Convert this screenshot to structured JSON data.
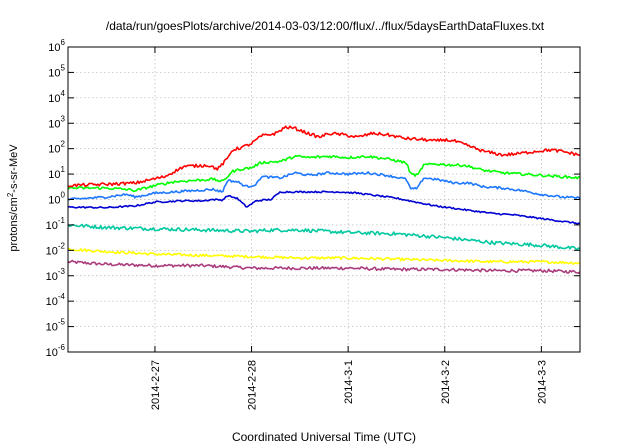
{
  "chart_data": {
    "type": "line",
    "title": "/data/run/goesPlots/archive/2014-03-03/12:00/flux/../flux/5daysEarthDataFluxes.txt",
    "xlabel": "Coordinated Universal Time (UTC)",
    "ylabel_prefix": "protons/cm",
    "ylabel_sup": "2",
    "ylabel_suffix": "-s-sr-MeV",
    "y_scale": "log",
    "ylim": [
      1e-06,
      1000000.0
    ],
    "xlim": [
      -0.9,
      4.4
    ],
    "x_unit": "days since 2014-2-27 00:00 UTC",
    "grid": true,
    "y_ticks": [
      {
        "base": "10",
        "exp": "-6",
        "value": -6
      },
      {
        "base": "10",
        "exp": "-5",
        "value": -5
      },
      {
        "base": "10",
        "exp": "-4",
        "value": -4
      },
      {
        "base": "10",
        "exp": "-3",
        "value": -3
      },
      {
        "base": "10",
        "exp": "-2",
        "value": -2
      },
      {
        "base": "10",
        "exp": "-1",
        "value": -1
      },
      {
        "base": "10",
        "exp": "0",
        "value": 0
      },
      {
        "base": "10",
        "exp": "1",
        "value": 1
      },
      {
        "base": "10",
        "exp": "2",
        "value": 2
      },
      {
        "base": "10",
        "exp": "3",
        "value": 3
      },
      {
        "base": "10",
        "exp": "4",
        "value": 4
      },
      {
        "base": "10",
        "exp": "5",
        "value": 5
      },
      {
        "base": "10",
        "exp": "6",
        "value": 6
      }
    ],
    "x_ticks": [
      {
        "label": "2014-2-27",
        "x": 0
      },
      {
        "label": "2014-2-28",
        "x": 1
      },
      {
        "label": "2014-3-1",
        "x": 2
      },
      {
        "label": "2014-3-2",
        "x": 3
      },
      {
        "label": "2014-3-3",
        "x": 4
      }
    ],
    "series": [
      {
        "color": "#ff0000",
        "noise": 0.06,
        "points": [
          [
            -0.9,
            0.55
          ],
          [
            -0.5,
            0.6
          ],
          [
            -0.2,
            0.65
          ],
          [
            0.1,
            0.9
          ],
          [
            0.3,
            1.3
          ],
          [
            0.55,
            1.35
          ],
          [
            0.65,
            1.2
          ],
          [
            0.75,
            1.6
          ],
          [
            0.8,
            1.95
          ],
          [
            0.9,
            2.05
          ],
          [
            1.0,
            2.2
          ],
          [
            1.1,
            2.5
          ],
          [
            1.25,
            2.6
          ],
          [
            1.35,
            2.85
          ],
          [
            1.45,
            2.8
          ],
          [
            1.55,
            2.65
          ],
          [
            1.7,
            2.45
          ],
          [
            1.8,
            2.6
          ],
          [
            1.95,
            2.55
          ],
          [
            2.1,
            2.45
          ],
          [
            2.25,
            2.6
          ],
          [
            2.4,
            2.55
          ],
          [
            2.6,
            2.4
          ],
          [
            2.8,
            2.35
          ],
          [
            2.9,
            2.3
          ],
          [
            3.0,
            2.35
          ],
          [
            3.1,
            2.3
          ],
          [
            3.25,
            2.1
          ],
          [
            3.4,
            1.9
          ],
          [
            3.6,
            1.75
          ],
          [
            3.75,
            1.8
          ],
          [
            3.95,
            1.9
          ],
          [
            4.1,
            1.95
          ],
          [
            4.2,
            1.9
          ],
          [
            4.4,
            1.75
          ]
        ]
      },
      {
        "color": "#00ff00",
        "noise": 0.05,
        "points": [
          [
            -0.9,
            0.45
          ],
          [
            -0.5,
            0.45
          ],
          [
            -0.3,
            0.4
          ],
          [
            -0.2,
            0.35
          ],
          [
            0.0,
            0.55
          ],
          [
            0.2,
            0.7
          ],
          [
            0.4,
            0.75
          ],
          [
            0.6,
            0.8
          ],
          [
            0.7,
            0.7
          ],
          [
            0.8,
            1.1
          ],
          [
            0.9,
            1.2
          ],
          [
            1.0,
            1.25
          ],
          [
            1.1,
            1.45
          ],
          [
            1.3,
            1.5
          ],
          [
            1.45,
            1.7
          ],
          [
            1.6,
            1.65
          ],
          [
            1.8,
            1.7
          ],
          [
            2.0,
            1.65
          ],
          [
            2.2,
            1.7
          ],
          [
            2.4,
            1.6
          ],
          [
            2.6,
            1.45
          ],
          [
            2.65,
            1.0
          ],
          [
            2.72,
            0.95
          ],
          [
            2.78,
            1.35
          ],
          [
            2.9,
            1.4
          ],
          [
            3.1,
            1.35
          ],
          [
            3.2,
            1.35
          ],
          [
            3.4,
            1.15
          ],
          [
            3.6,
            1.05
          ],
          [
            3.8,
            1.0
          ],
          [
            4.0,
            0.95
          ],
          [
            4.2,
            0.9
          ],
          [
            4.4,
            0.85
          ]
        ]
      },
      {
        "color": "#1e78ff",
        "noise": 0.045,
        "points": [
          [
            -0.9,
            0.0
          ],
          [
            -0.5,
            0.1
          ],
          [
            -0.3,
            0.2
          ],
          [
            -0.2,
            0.1
          ],
          [
            0.0,
            0.25
          ],
          [
            0.2,
            0.3
          ],
          [
            0.4,
            0.35
          ],
          [
            0.6,
            0.4
          ],
          [
            0.7,
            0.3
          ],
          [
            0.75,
            0.75
          ],
          [
            0.85,
            0.7
          ],
          [
            0.95,
            0.5
          ],
          [
            1.05,
            0.6
          ],
          [
            1.1,
            0.9
          ],
          [
            1.3,
            0.85
          ],
          [
            1.45,
            1.05
          ],
          [
            1.6,
            0.95
          ],
          [
            1.8,
            1.05
          ],
          [
            2.0,
            1.0
          ],
          [
            2.2,
            1.05
          ],
          [
            2.4,
            0.95
          ],
          [
            2.6,
            0.8
          ],
          [
            2.65,
            0.4
          ],
          [
            2.72,
            0.45
          ],
          [
            2.78,
            0.85
          ],
          [
            2.9,
            0.8
          ],
          [
            3.1,
            0.65
          ],
          [
            3.25,
            0.65
          ],
          [
            3.4,
            0.5
          ],
          [
            3.6,
            0.45
          ],
          [
            3.8,
            0.35
          ],
          [
            4.0,
            0.2
          ],
          [
            4.2,
            0.1
          ],
          [
            4.4,
            0.05
          ]
        ]
      },
      {
        "color": "#0000d2",
        "noise": 0.03,
        "points": [
          [
            -0.9,
            -0.3
          ],
          [
            -0.5,
            -0.32
          ],
          [
            -0.2,
            -0.25
          ],
          [
            0.0,
            -0.1
          ],
          [
            0.3,
            -0.05
          ],
          [
            0.5,
            -0.05
          ],
          [
            0.6,
            0.0
          ],
          [
            0.7,
            -0.02
          ],
          [
            0.75,
            0.15
          ],
          [
            0.85,
            0.05
          ],
          [
            0.95,
            -0.3
          ],
          [
            1.05,
            -0.05
          ],
          [
            1.2,
            0.0
          ],
          [
            1.3,
            0.3
          ],
          [
            1.5,
            0.3
          ],
          [
            1.7,
            0.3
          ],
          [
            1.9,
            0.3
          ],
          [
            2.1,
            0.25
          ],
          [
            2.3,
            0.15
          ],
          [
            2.5,
            0.05
          ],
          [
            2.7,
            -0.1
          ],
          [
            2.9,
            -0.25
          ],
          [
            3.1,
            -0.35
          ],
          [
            3.3,
            -0.45
          ],
          [
            3.5,
            -0.55
          ],
          [
            3.7,
            -0.6
          ],
          [
            3.9,
            -0.7
          ],
          [
            4.1,
            -0.8
          ],
          [
            4.3,
            -0.9
          ],
          [
            4.4,
            -0.95
          ]
        ]
      },
      {
        "color": "#00c8a0",
        "noise": 0.07,
        "points": [
          [
            -0.9,
            -1.0
          ],
          [
            -0.5,
            -1.1
          ],
          [
            0.0,
            -1.15
          ],
          [
            0.5,
            -1.2
          ],
          [
            1.0,
            -1.25
          ],
          [
            1.2,
            -1.2
          ],
          [
            1.5,
            -1.2
          ],
          [
            2.0,
            -1.3
          ],
          [
            2.5,
            -1.35
          ],
          [
            3.0,
            -1.5
          ],
          [
            3.5,
            -1.7
          ],
          [
            4.0,
            -1.8
          ],
          [
            4.4,
            -1.95
          ]
        ]
      },
      {
        "color": "#ffff00",
        "noise": 0.05,
        "points": [
          [
            -0.9,
            -1.95
          ],
          [
            -0.5,
            -2.05
          ],
          [
            0.0,
            -2.15
          ],
          [
            0.5,
            -2.2
          ],
          [
            1.0,
            -2.25
          ],
          [
            1.5,
            -2.3
          ],
          [
            2.0,
            -2.3
          ],
          [
            2.5,
            -2.35
          ],
          [
            3.0,
            -2.4
          ],
          [
            3.5,
            -2.45
          ],
          [
            4.0,
            -2.45
          ],
          [
            4.4,
            -2.5
          ]
        ]
      },
      {
        "color": "#aa3c7d",
        "noise": 0.06,
        "points": [
          [
            -0.9,
            -2.45
          ],
          [
            -0.5,
            -2.55
          ],
          [
            0.0,
            -2.6
          ],
          [
            0.5,
            -2.6
          ],
          [
            1.0,
            -2.7
          ],
          [
            1.5,
            -2.7
          ],
          [
            2.0,
            -2.7
          ],
          [
            2.5,
            -2.75
          ],
          [
            3.0,
            -2.75
          ],
          [
            3.5,
            -2.8
          ],
          [
            4.0,
            -2.8
          ],
          [
            4.4,
            -2.85
          ]
        ]
      }
    ]
  }
}
